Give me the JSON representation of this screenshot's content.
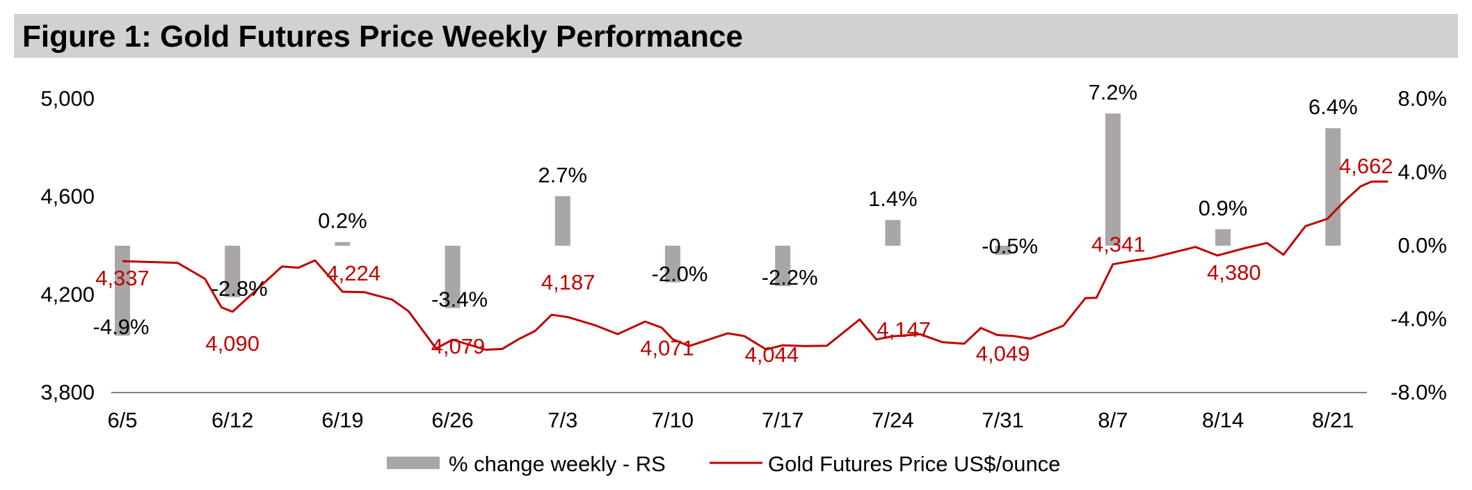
{
  "chart_data": {
    "type": "bar+line",
    "title": "Figure 1: Gold Futures Price Weekly Performance",
    "categories": [
      "6/5",
      "6/12",
      "6/19",
      "6/26",
      "7/3",
      "7/10",
      "7/17",
      "7/24",
      "7/31",
      "8/7",
      "8/14",
      "8/21"
    ],
    "bar_series": {
      "name": "% change weekly - RS",
      "axis": "right",
      "values": [
        -4.9,
        -2.8,
        0.2,
        -3.4,
        2.7,
        -2.0,
        -2.2,
        1.4,
        -0.5,
        7.2,
        0.9,
        6.4
      ],
      "labels": [
        "-4.9%",
        "-2.8%",
        "0.2%",
        "-3.4%",
        "2.7%",
        "-2.0%",
        "-2.2%",
        "1.4%",
        "-0.5%",
        "7.2%",
        "0.9%",
        "6.4%"
      ],
      "color": "#aaa6a6"
    },
    "line_series": {
      "name": "Gold Futures Price US$/ounce",
      "axis": "left",
      "color": "#c00000",
      "x": [
        0,
        0.5,
        0.75,
        0.9,
        1.0,
        1.2,
        1.45,
        1.6,
        1.75,
        2.0,
        2.2,
        2.45,
        2.6,
        2.85,
        3.0,
        3.3,
        3.45,
        3.6,
        3.75,
        3.9,
        4.05,
        4.3,
        4.5,
        4.75,
        4.9,
        5.0,
        5.15,
        5.5,
        5.65,
        5.85,
        6.0,
        6.2,
        6.4,
        6.7,
        6.85,
        7.0,
        7.25,
        7.45,
        7.65,
        7.8,
        7.95,
        8.1,
        8.25,
        8.55,
        8.75,
        8.85,
        9.0,
        9.2,
        9.35,
        9.75,
        9.95,
        10.2,
        10.4,
        10.55,
        10.75,
        10.95,
        11.1,
        11.25,
        11.35,
        11.5
      ],
      "values": [
        4337,
        4330,
        4265,
        4148,
        4130,
        4212,
        4315,
        4310,
        4340,
        4212,
        4210,
        4180,
        4132,
        3980,
        4016,
        3975,
        3978,
        4018,
        4052,
        4118,
        4108,
        4074,
        4039,
        4090,
        4065,
        4018,
        3990,
        4042,
        4031,
        3976,
        3993,
        3990,
        3991,
        4099,
        4017,
        4030,
        4038,
        4006,
        4000,
        4064,
        4035,
        4031,
        4020,
        4073,
        4186,
        4187,
        4324,
        4340,
        4350,
        4395,
        4360,
        4390,
        4411,
        4363,
        4480,
        4510,
        4580,
        4642,
        4662,
        4662
      ],
      "labels": [
        {
          "x": 0.0,
          "value": 4337,
          "text": "4,337"
        },
        {
          "x": 1.0,
          "value": 4090,
          "text": "4,090"
        },
        {
          "x": 2.1,
          "value": 4224,
          "text": "4,224"
        },
        {
          "x": 3.05,
          "value": 4079,
          "text": "4,079"
        },
        {
          "x": 4.05,
          "value": 4187,
          "text": "4,187"
        },
        {
          "x": 4.95,
          "value": 4071,
          "text": "4,071"
        },
        {
          "x": 5.9,
          "value": 4044,
          "text": "4,044"
        },
        {
          "x": 7.1,
          "value": 4147,
          "text": "4,147"
        },
        {
          "x": 8.0,
          "value": 4049,
          "text": "4,049"
        },
        {
          "x": 9.05,
          "value": 4341,
          "text": "4,341"
        },
        {
          "x": 10.1,
          "value": 4380,
          "text": "4,380"
        },
        {
          "x": 11.3,
          "value": 4662,
          "text": "4,662"
        }
      ]
    },
    "left_axis": {
      "min": 3800,
      "max": 5000,
      "ticks": [
        3800,
        4200,
        4600,
        5000
      ],
      "tick_labels": [
        "3,800",
        "4,200",
        "4,600",
        "5,000"
      ]
    },
    "right_axis": {
      "min": -8.0,
      "max": 8.0,
      "ticks": [
        -8,
        -4,
        0,
        4,
        8
      ],
      "tick_labels": [
        "-8.0%",
        "-4.0%",
        "0.0%",
        "4.0%",
        "8.0%"
      ]
    },
    "grid": false,
    "legend_position": "bottom"
  }
}
